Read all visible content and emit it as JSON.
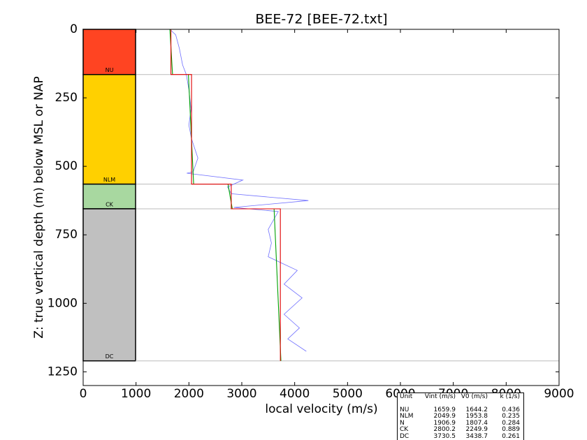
{
  "chart_data": {
    "type": "line",
    "title": "BEE-72 [BEE-72.txt]",
    "x_label": "local velocity (m/s)",
    "y_label": "Z: true vertical depth (m) below MSL or NAP",
    "xlim": [
      0,
      9000
    ],
    "ylim": [
      1300,
      0
    ],
    "xticks": [
      0,
      1000,
      2000,
      3000,
      4000,
      5000,
      6000,
      7000,
      8000,
      9000
    ],
    "yticks": [
      0,
      250,
      500,
      750,
      1000,
      1250
    ],
    "units": [
      {
        "label": "NU",
        "top": 0,
        "bottom": 165,
        "color": "#ff4422"
      },
      {
        "label": "NLM",
        "top": 165,
        "bottom": 565,
        "color": "#ffd000"
      },
      {
        "label": "CK",
        "top": 565,
        "bottom": 655,
        "color": "#a8d8a0"
      },
      {
        "label": "DC",
        "top": 655,
        "bottom": 1210,
        "color": "#c0c0c0"
      }
    ],
    "series": [
      {
        "color": "#7070ff",
        "x": [
          1640,
          1750,
          1820,
          1880,
          1950,
          2000,
          2040,
          2000,
          2050,
          2170,
          2080,
          1960,
          3020,
          2730,
          2800,
          4260,
          2850,
          3690,
          3500,
          3560,
          3500,
          4050,
          3800,
          4140,
          3800,
          4090,
          3870,
          4220
        ],
        "values": [
          0,
          20,
          70,
          130,
          165,
          220,
          290,
          350,
          400,
          470,
          520,
          525,
          550,
          575,
          600,
          625,
          650,
          665,
          730,
          780,
          830,
          880,
          930,
          980,
          1040,
          1090,
          1130,
          1175
        ]
      },
      {
        "color": "#00a000",
        "x": [
          1640,
          1690,
          null,
          1990,
          2090,
          null,
          2740,
          2820,
          null,
          3610,
          3740
        ],
        "values": [
          0,
          165,
          null,
          165,
          565,
          null,
          565,
          655,
          null,
          655,
          1210
        ]
      },
      {
        "color": "#e00000",
        "x": [
          1660,
          1660,
          2050,
          2050,
          2800,
          2800,
          3730,
          3730
        ],
        "values": [
          0,
          165,
          165,
          565,
          565,
          655,
          655,
          1210
        ]
      }
    ]
  },
  "table": {
    "header": [
      "Unit",
      "Vint (m/s)",
      "V0 (m/s)",
      "k (1/s)"
    ],
    "rows": [
      [
        "NU",
        "1659.9",
        "1644.2",
        "0.436"
      ],
      [
        "NLM",
        "2049.9",
        "1953.8",
        "0.235"
      ],
      [
        "N",
        "1906.9",
        "1807.4",
        "0.284"
      ],
      [
        "CK",
        "2800.2",
        "2249.9",
        "0.889"
      ],
      [
        "DC",
        "3730.5",
        "3438.7",
        "0.261"
      ]
    ]
  }
}
